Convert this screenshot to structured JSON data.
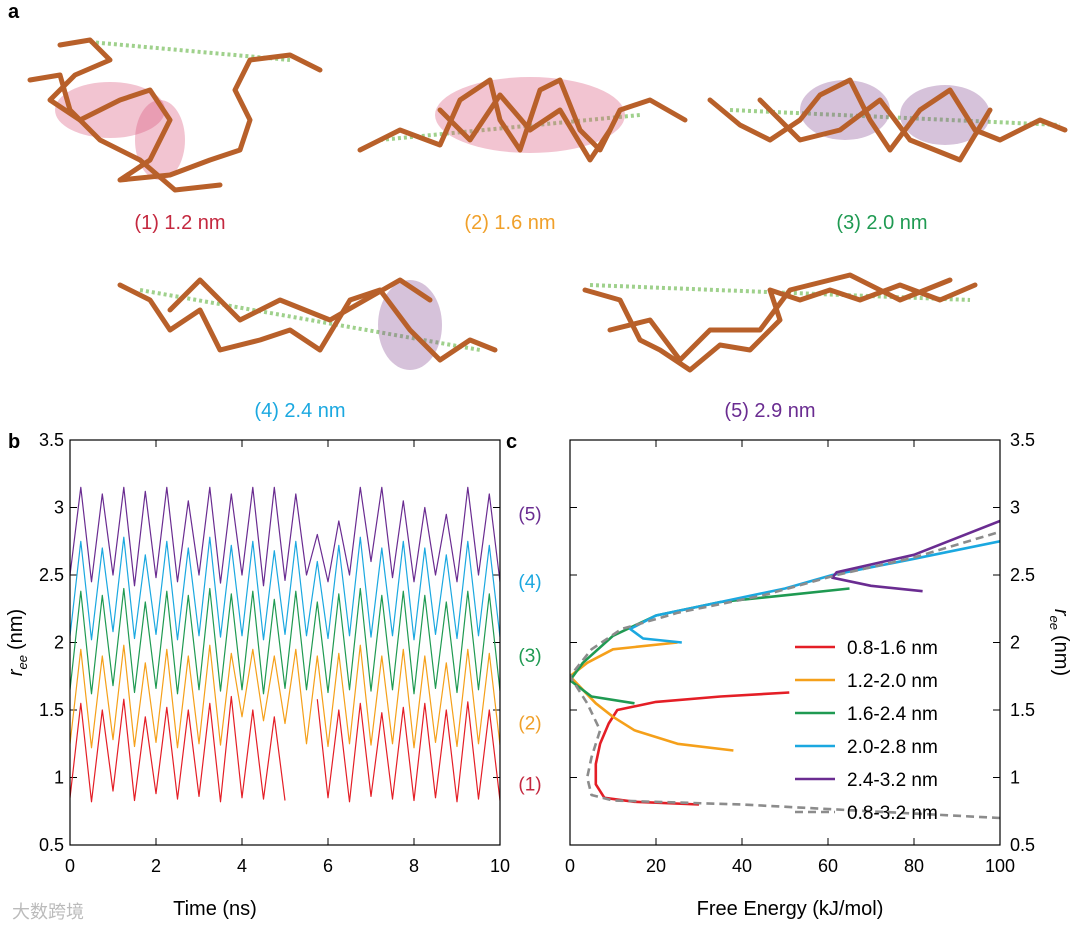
{
  "panel_a": {
    "label": "a",
    "structures": [
      {
        "text": "(1) 1.2 nm",
        "color": "#c4283f"
      },
      {
        "text": "(2) 1.6 nm",
        "color": "#f0a02a"
      },
      {
        "text": "(3) 2.0 nm",
        "color": "#1f9a52"
      },
      {
        "text": "(4) 2.4 nm",
        "color": "#1ba8e0"
      },
      {
        "text": "(5) 2.9 nm",
        "color": "#6a2c91"
      }
    ]
  },
  "watermark": "大数跨境",
  "chart_data": [
    {
      "type": "line",
      "panel": "b",
      "xlabel": "Time (ns)",
      "ylabel": {
        "symbol": "r",
        "subscript": "ee",
        "unit": "(nm)"
      },
      "xlim": [
        0,
        10
      ],
      "xticks": [
        0,
        2,
        4,
        6,
        8,
        10
      ],
      "ylim": [
        0.5,
        3.5
      ],
      "yticks": [
        0.5,
        1,
        1.5,
        2,
        2.5,
        3,
        3.5
      ],
      "x": [
        0,
        0.25,
        0.5,
        0.75,
        1,
        1.25,
        1.5,
        1.75,
        2,
        2.25,
        2.5,
        2.75,
        3,
        3.25,
        3.5,
        3.75,
        4,
        4.25,
        4.5,
        4.75,
        5,
        5.25,
        5.5,
        5.75,
        6,
        6.25,
        6.5,
        6.75,
        7,
        7.25,
        7.5,
        7.75,
        8,
        8.25,
        8.5,
        8.75,
        9,
        9.25,
        9.5,
        9.75,
        10
      ],
      "series": [
        {
          "color": "#6a2c91",
          "values": [
            2.5,
            3.15,
            2.45,
            3.1,
            2.5,
            3.15,
            2.42,
            3.12,
            2.48,
            3.15,
            2.45,
            3.05,
            2.5,
            3.15,
            2.44,
            3.1,
            2.5,
            3.15,
            2.42,
            3.15,
            2.46,
            3.1,
            2.5,
            2.8,
            2.45,
            2.9,
            2.5,
            3.15,
            2.6,
            3.15,
            2.48,
            3.05,
            2.45,
            3.0,
            2.5,
            2.95,
            2.45,
            3.15,
            2.5,
            3.1,
            2.45
          ]
        },
        {
          "color": "#1ba8e0",
          "values": [
            2.05,
            2.75,
            2.02,
            2.7,
            2.08,
            2.78,
            2.03,
            2.65,
            2.06,
            2.75,
            2.02,
            2.7,
            2.05,
            2.78,
            2.04,
            2.72,
            2.05,
            2.75,
            2.02,
            2.68,
            2.06,
            2.75,
            2.05,
            2.6,
            2.03,
            2.72,
            2.05,
            2.78,
            2.04,
            2.7,
            2.05,
            2.75,
            2.02,
            2.7,
            2.06,
            2.65,
            2.03,
            2.75,
            2.05,
            2.72,
            2.04
          ]
        },
        {
          "color": "#1f9a52",
          "values": [
            1.65,
            2.38,
            1.62,
            2.35,
            1.68,
            2.4,
            1.63,
            2.3,
            1.66,
            2.38,
            1.62,
            2.35,
            1.65,
            2.4,
            1.64,
            2.36,
            1.65,
            2.38,
            1.62,
            2.32,
            1.66,
            2.38,
            1.65,
            2.3,
            1.63,
            2.36,
            1.65,
            2.4,
            1.64,
            2.35,
            1.65,
            2.38,
            1.62,
            2.35,
            1.66,
            2.3,
            1.63,
            2.38,
            1.65,
            2.36,
            1.64
          ]
        },
        {
          "color": "#f5a01a",
          "values": [
            1.25,
            1.95,
            1.22,
            1.9,
            1.28,
            1.98,
            1.23,
            1.85,
            1.26,
            1.95,
            1.22,
            1.9,
            1.25,
            1.98,
            1.24,
            1.92,
            1.45,
            1.95,
            1.42,
            1.9,
            1.4,
            1.95,
            1.25,
            1.9,
            1.23,
            1.92,
            1.25,
            1.98,
            1.24,
            1.9,
            1.25,
            1.95,
            1.22,
            1.9,
            1.26,
            1.85,
            1.23,
            1.95,
            1.25,
            1.92,
            1.24
          ]
        },
        {
          "color": "#e41e26",
          "values": [
            0.85,
            1.55,
            0.82,
            1.5,
            0.9,
            1.58,
            0.83,
            1.45,
            0.88,
            1.52,
            0.84,
            1.5,
            0.86,
            1.55,
            0.82,
            1.6,
            0.85,
            1.5,
            0.84,
            1.45,
            0.83,
            null,
            null,
            1.58,
            0.85,
            1.5,
            0.82,
            1.55,
            0.86,
            1.48,
            0.84,
            1.52,
            0.83,
            1.55,
            0.85,
            1.5,
            0.82,
            1.56,
            0.84,
            1.5,
            0.83
          ]
        }
      ],
      "annotations": [
        {
          "text": "(5)",
          "y": 2.95,
          "color": "#6a2c91"
        },
        {
          "text": "(4)",
          "y": 2.45,
          "color": "#1ba8e0"
        },
        {
          "text": "(3)",
          "y": 1.9,
          "color": "#1f9a52"
        },
        {
          "text": "(2)",
          "y": 1.4,
          "color": "#f0a02a"
        },
        {
          "text": "(1)",
          "y": 0.95,
          "color": "#c4283f"
        }
      ]
    },
    {
      "type": "line",
      "panel": "c",
      "xlabel": "Free Energy (kJ/mol)",
      "ylabel": {
        "symbol": "r",
        "subscript": "ee",
        "unit": "(nm)"
      },
      "yaxis_side": "right",
      "legend": "lower right",
      "xlim": [
        0,
        100
      ],
      "xticks": [
        0,
        20,
        40,
        60,
        80,
        100
      ],
      "ylim": [
        0.5,
        3.5
      ],
      "yticks": [
        0.5,
        1,
        1.5,
        2,
        2.5,
        3,
        3.5
      ],
      "series": [
        {
          "name": "0.8-1.6 nm",
          "color": "#e41e26",
          "x": [
            30,
            15,
            8,
            6,
            6,
            7,
            9,
            11,
            20,
            35,
            51
          ],
          "values": [
            0.8,
            0.82,
            0.85,
            0.95,
            1.1,
            1.25,
            1.4,
            1.5,
            1.56,
            1.6,
            1.63
          ]
        },
        {
          "name": "1.2-2.0 nm",
          "color": "#f5a01a",
          "x": [
            38,
            25,
            15,
            10,
            6,
            3,
            0,
            4,
            10,
            25
          ],
          "values": [
            1.2,
            1.25,
            1.35,
            1.45,
            1.55,
            1.65,
            1.75,
            1.85,
            1.95,
            2.0
          ]
        },
        {
          "name": "1.6-2.4 nm",
          "color": "#1f9a52",
          "x": [
            15,
            5,
            0,
            3,
            10,
            20,
            35,
            50,
            65
          ],
          "values": [
            1.55,
            1.6,
            1.72,
            1.85,
            2.05,
            2.2,
            2.3,
            2.35,
            2.4
          ]
        },
        {
          "name": "2.0-2.8 nm",
          "color": "#1ba8e0",
          "x": [
            26,
            17,
            14,
            20,
            35,
            50,
            61,
            80,
            100
          ],
          "values": [
            2.0,
            2.03,
            2.1,
            2.2,
            2.3,
            2.4,
            2.5,
            2.62,
            2.75
          ]
        },
        {
          "name": "2.4-3.2 nm",
          "color": "#6a2c91",
          "x": [
            82,
            70,
            61,
            62,
            80,
            100
          ],
          "values": [
            2.38,
            2.42,
            2.48,
            2.52,
            2.65,
            2.9
          ]
        },
        {
          "name": "0.8-3.2 nm",
          "color": "#8c8c8c",
          "dashed": true,
          "x": [
            100,
            70,
            40,
            10,
            5,
            4,
            5,
            7,
            4,
            0,
            5,
            12,
            25,
            45,
            62,
            80,
            100
          ],
          "values": [
            0.7,
            0.75,
            0.8,
            0.83,
            0.87,
            1.0,
            1.15,
            1.35,
            1.55,
            1.75,
            1.95,
            2.1,
            2.22,
            2.35,
            2.5,
            2.63,
            2.82
          ]
        }
      ]
    }
  ]
}
